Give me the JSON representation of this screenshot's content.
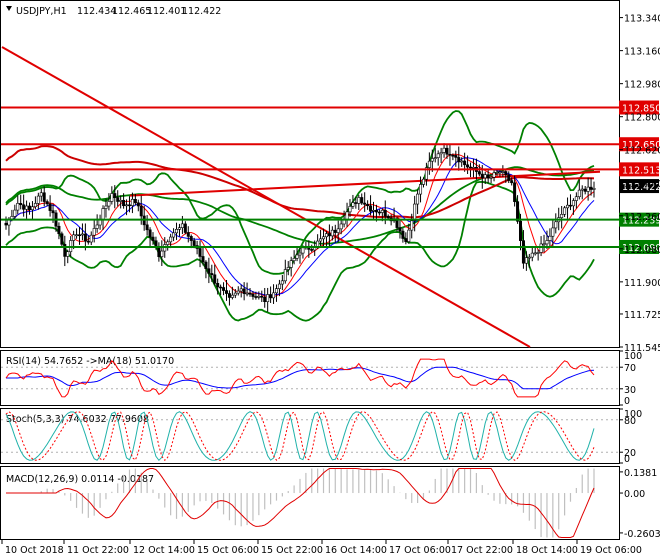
{
  "chart_data": [
    {
      "type": "candlestick",
      "symbol": "USDJPY,H1",
      "ohlc_header": [
        "112.434",
        "112.465",
        "112.401",
        "112.422"
      ],
      "y_ticks": [
        "113.340",
        "113.160",
        "112.980",
        "112.800",
        "112.620",
        "112.440",
        "112.260",
        "112.080",
        "111.900",
        "111.725",
        "111.545"
      ],
      "ylim": [
        111.545,
        113.425
      ],
      "x_ticks": [
        "10 Oct 2018",
        "11 Oct 22:00",
        "12 Oct 14:00",
        "15 Oct 06:00",
        "15 Oct 22:00",
        "16 Oct 14:00",
        "17 Oct 06:00",
        "17 Oct 22:00",
        "18 Oct 14:00",
        "19 Oct 06:00"
      ],
      "price_levels": [
        {
          "label": "112.850",
          "value": 112.85,
          "color": "#e00000",
          "kind": "resistance"
        },
        {
          "label": "112.650",
          "value": 112.65,
          "color": "#e00000",
          "kind": "resistance"
        },
        {
          "label": "112.513",
          "value": 112.513,
          "color": "#e00000",
          "kind": "resistance"
        },
        {
          "label": "112.239",
          "value": 112.239,
          "color": "#008000",
          "kind": "support"
        },
        {
          "label": "112.090",
          "value": 112.09,
          "color": "#008000",
          "kind": "support"
        }
      ],
      "current_price": {
        "label": "112.422",
        "value": 112.422
      },
      "close_path": [
        [
          0,
          112.21
        ],
        [
          4,
          112.33
        ],
        [
          8,
          112.29
        ],
        [
          12,
          112.38
        ],
        [
          16,
          112.27
        ],
        [
          20,
          112.05
        ],
        [
          24,
          112.17
        ],
        [
          28,
          112.12
        ],
        [
          32,
          112.25
        ],
        [
          36,
          112.38
        ],
        [
          40,
          112.32
        ],
        [
          44,
          112.34
        ],
        [
          48,
          112.18
        ],
        [
          52,
          112.05
        ],
        [
          56,
          112.16
        ],
        [
          60,
          112.2
        ],
        [
          64,
          112.1
        ],
        [
          68,
          111.98
        ],
        [
          72,
          111.88
        ],
        [
          76,
          111.8
        ],
        [
          80,
          111.86
        ],
        [
          84,
          111.83
        ],
        [
          88,
          111.8
        ],
        [
          92,
          111.86
        ],
        [
          96,
          111.98
        ],
        [
          100,
          112.07
        ],
        [
          104,
          112.09
        ],
        [
          108,
          112.14
        ],
        [
          112,
          112.18
        ],
        [
          116,
          112.28
        ],
        [
          120,
          112.36
        ],
        [
          124,
          112.3
        ],
        [
          128,
          112.28
        ],
        [
          132,
          112.24
        ],
        [
          136,
          112.12
        ],
        [
          140,
          112.38
        ],
        [
          144,
          112.55
        ],
        [
          148,
          112.62
        ],
        [
          152,
          112.6
        ],
        [
          156,
          112.54
        ],
        [
          160,
          112.5
        ],
        [
          164,
          112.46
        ],
        [
          168,
          112.5
        ],
        [
          172,
          112.44
        ],
        [
          176,
          112.0
        ],
        [
          180,
          112.06
        ],
        [
          184,
          112.12
        ],
        [
          188,
          112.25
        ],
        [
          192,
          112.33
        ],
        [
          196,
          112.4
        ],
        [
          200,
          112.42
        ]
      ],
      "indicators": [
        {
          "name": "RSI(14) 54.7652 ->MA(18) 51.0170",
          "ylim": [
            0,
            100
          ],
          "y_ticks": [
            "100",
            "70",
            "30",
            "0"
          ]
        },
        {
          "name": "Stoch(5,3,3) 74.6032 77.9608",
          "ylim": [
            0,
            100
          ],
          "y_ticks": [
            "100",
            "80",
            "20",
            "0"
          ]
        },
        {
          "name": "MACD(12,26,9) 0.0114 -0.0187",
          "ylim": [
            -0.3,
            0.17
          ],
          "y_ticks": [
            "0.1381",
            "0.00",
            "-0.2603"
          ]
        }
      ],
      "grid": false,
      "colors": {
        "bull_body": "#ffffff",
        "bear_body": "#000000",
        "candle_stroke": "#000000",
        "level_red": "#e00000",
        "level_green": "#008000",
        "ma_fast": "#ff0000",
        "ma_slow": "#0000ff",
        "bollinger": "#008000",
        "trendline": "#e00000",
        "stoch_main": "#20b2aa",
        "stoch_signal": "#ff0000",
        "macd_hist": "#c0c0c0",
        "macd_signal": "#e00000",
        "current_tag": "#000000"
      }
    }
  ]
}
